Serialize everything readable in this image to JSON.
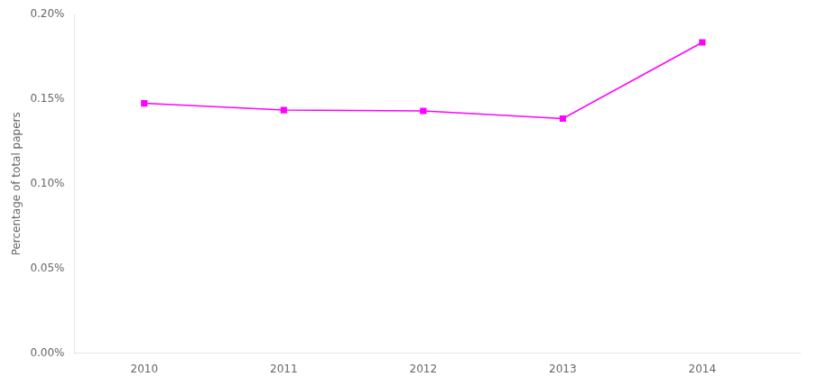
{
  "chart_data": {
    "type": "line",
    "x": [
      2010,
      2011,
      2012,
      2013,
      2014
    ],
    "values": [
      0.001475,
      0.001435,
      0.00143,
      0.001385,
      0.001835
    ],
    "color": "#FF00FF",
    "marker": "square",
    "ylabel": "Percentage of total papers",
    "xlim": [
      2009.5,
      2014.7
    ],
    "xticks": [
      2010,
      2011,
      2012,
      2013,
      2014
    ],
    "ylim": [
      0,
      0.002
    ],
    "yticks": [
      {
        "value": 0,
        "label": "0.00%"
      },
      {
        "value": 0.0005,
        "label": "0.05%"
      },
      {
        "value": 0.001,
        "label": "0.10%"
      },
      {
        "value": 0.0015,
        "label": "0.15%"
      },
      {
        "value": 0.002,
        "label": "0.20%"
      }
    ],
    "grid": false
  }
}
